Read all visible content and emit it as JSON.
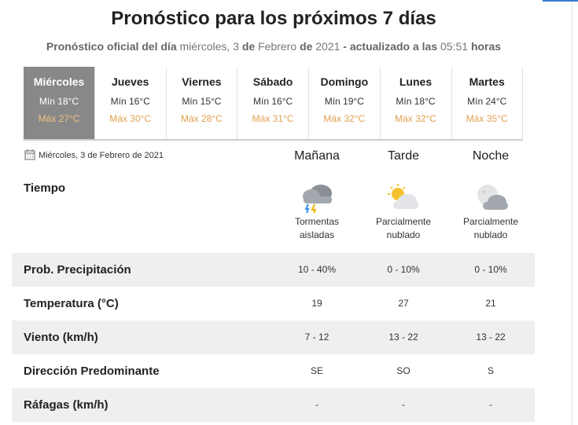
{
  "header": {
    "title": "Pronóstico para los próximos 7 días",
    "subtitle": [
      {
        "text": "Pronóstico oficial del día",
        "bold": true
      },
      {
        "text": "miércoles, 3",
        "bold": false
      },
      {
        "text": "de",
        "bold": true
      },
      {
        "text": "Febrero",
        "bold": false
      },
      {
        "text": "de",
        "bold": true
      },
      {
        "text": "2021",
        "bold": false
      },
      {
        "text": "- actualizado a las",
        "bold": true
      },
      {
        "text": "05:51",
        "bold": false
      },
      {
        "text": "horas",
        "bold": true
      }
    ]
  },
  "days": [
    {
      "name": "Miércoles",
      "min": "Mín 18°C",
      "max": "Máx 27°C",
      "selected": true
    },
    {
      "name": "Jueves",
      "min": "Mín 16°C",
      "max": "Máx 30°C",
      "selected": false
    },
    {
      "name": "Viernes",
      "min": "Mín 15°C",
      "max": "Máx 28°C",
      "selected": false
    },
    {
      "name": "Sábado",
      "min": "Mín 16°C",
      "max": "Máx 31°C",
      "selected": false
    },
    {
      "name": "Domingo",
      "min": "Mín 19°C",
      "max": "Máx 32°C",
      "selected": false
    },
    {
      "name": "Lunes",
      "min": "Mín 18°C",
      "max": "Máx 32°C",
      "selected": false
    },
    {
      "name": "Martes",
      "min": "Mín 24°C",
      "max": "Máx 35°C",
      "selected": false
    }
  ],
  "detail": {
    "date": "Miércoles, 3 de Febrero de 2021",
    "periods": [
      "Mañana",
      "Tarde",
      "Noche"
    ],
    "weather_label": "Tiempo",
    "conditions": [
      "Tormentas aisladas",
      "Parcialmente nublado",
      "Parcialmente nublado"
    ],
    "rows": [
      {
        "label": "Prob. Precipitación",
        "values": [
          "10 - 40%",
          "0 - 10%",
          "0 - 10%"
        ]
      },
      {
        "label": "Temperatura (°C)",
        "values": [
          "19",
          "27",
          "21"
        ]
      },
      {
        "label": "Viento (km/h)",
        "values": [
          "7 - 12",
          "13 - 22",
          "13 - 22"
        ]
      },
      {
        "label": "Dirección Predominante",
        "values": [
          "SE",
          "SO",
          "S"
        ]
      },
      {
        "label": "Ráfagas (km/h)",
        "values": [
          "-",
          "-",
          "-"
        ]
      }
    ]
  }
}
